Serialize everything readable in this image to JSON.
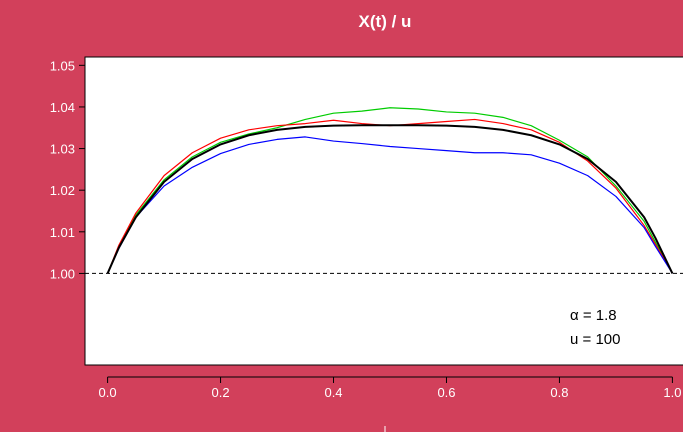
{
  "chart_data": {
    "type": "line",
    "title": "X(t) / u",
    "xlabel": "",
    "ylabel": "",
    "xlim": [
      -0.04,
      1.04
    ],
    "ylim": [
      0.978,
      1.052
    ],
    "x_ticks": [
      "0.0",
      "0.2",
      "0.4",
      "0.6",
      "0.8",
      "1.0"
    ],
    "y_ticks": [
      "1.00",
      "1.01",
      "1.02",
      "1.03",
      "1.04",
      "1.05"
    ],
    "reference_line": {
      "y": 1.0,
      "style": "dashed"
    },
    "annotations": [
      {
        "symbol": "α",
        "text": "= 1.8"
      },
      {
        "symbol": "u",
        "text": "= 100"
      }
    ],
    "colors": {
      "background": "#d2405b",
      "plot_area": "#ffffff",
      "theory": "#000000",
      "green": "#00cc00",
      "red": "#ff0000",
      "blue": "#0000ff"
    },
    "series": [
      {
        "color": "green",
        "x": [
          0,
          0.02,
          0.05,
          0.1,
          0.15,
          0.2,
          0.25,
          0.3,
          0.35,
          0.4,
          0.45,
          0.5,
          0.55,
          0.6,
          0.65,
          0.7,
          0.75,
          0.8,
          0.85,
          0.9,
          0.95,
          0.97,
          1.0
        ],
        "y": [
          1.0,
          1.0065,
          1.014,
          1.0225,
          1.028,
          1.0315,
          1.0335,
          1.035,
          1.037,
          1.0385,
          1.039,
          1.0398,
          1.0395,
          1.0388,
          1.0385,
          1.0375,
          1.0355,
          1.032,
          1.028,
          1.021,
          1.0125,
          1.0075,
          1.0
        ]
      },
      {
        "color": "red",
        "x": [
          0,
          0.02,
          0.05,
          0.1,
          0.15,
          0.2,
          0.25,
          0.3,
          0.35,
          0.4,
          0.45,
          0.5,
          0.55,
          0.6,
          0.65,
          0.7,
          0.75,
          0.8,
          0.85,
          0.9,
          0.95,
          0.97,
          1.0
        ],
        "y": [
          1.0,
          1.0068,
          1.0145,
          1.0235,
          1.029,
          1.0325,
          1.0345,
          1.0355,
          1.036,
          1.0368,
          1.036,
          1.0355,
          1.036,
          1.0365,
          1.037,
          1.036,
          1.0345,
          1.0315,
          1.027,
          1.0205,
          1.0115,
          1.007,
          1.0
        ]
      },
      {
        "color": "blue",
        "x": [
          0,
          0.02,
          0.05,
          0.1,
          0.15,
          0.2,
          0.25,
          0.3,
          0.35,
          0.4,
          0.45,
          0.5,
          0.55,
          0.6,
          0.65,
          0.7,
          0.75,
          0.8,
          0.85,
          0.9,
          0.95,
          0.97,
          1.0
        ],
        "y": [
          1.0,
          1.006,
          1.0135,
          1.021,
          1.0255,
          1.0288,
          1.031,
          1.0322,
          1.0328,
          1.0318,
          1.0312,
          1.0305,
          1.03,
          1.0295,
          1.029,
          1.029,
          1.0285,
          1.0265,
          1.0235,
          1.0185,
          1.011,
          1.0065,
          1.0
        ]
      },
      {
        "color": "theory",
        "x": [
          0,
          0.02,
          0.05,
          0.1,
          0.15,
          0.2,
          0.25,
          0.3,
          0.35,
          0.4,
          0.45,
          0.5,
          0.55,
          0.6,
          0.65,
          0.7,
          0.75,
          0.8,
          0.85,
          0.9,
          0.95,
          0.97,
          1.0
        ],
        "y": [
          1.0,
          1.0062,
          1.0135,
          1.022,
          1.0275,
          1.031,
          1.0332,
          1.0345,
          1.0352,
          1.0355,
          1.0356,
          1.0356,
          1.0356,
          1.0355,
          1.0352,
          1.0345,
          1.0332,
          1.031,
          1.0275,
          1.022,
          1.0135,
          1.0085,
          1.0
        ]
      }
    ]
  }
}
